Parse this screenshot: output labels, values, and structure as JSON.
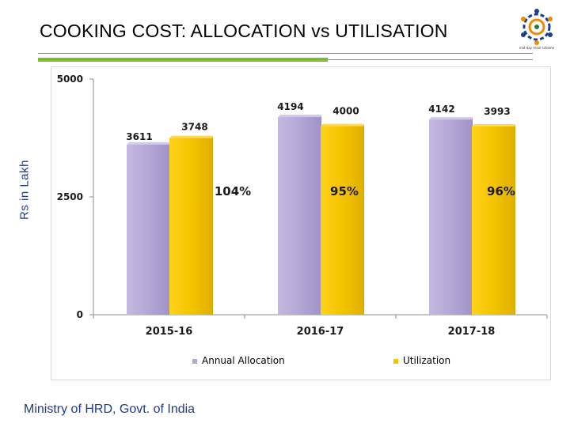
{
  "header": {
    "title": "COOKING COST: ALLOCATION vs UTILISATION"
  },
  "logo": {
    "name": "scheme-logo-icon",
    "caption": "mid day meal scheme"
  },
  "footer": {
    "text": "Ministry of HRD, Govt. of India"
  },
  "colors": {
    "allocation": "#b4a7d6",
    "utilization": "#f5c400",
    "title_rule": "#7dbb2a",
    "accent_text": "#1f3a8a"
  },
  "chart_data": {
    "type": "bar",
    "title": "COOKING COST: ALLOCATION vs UTILISATION",
    "xlabel": "",
    "ylabel": "Rs in Lakh",
    "ylim": [
      0,
      5000
    ],
    "yticks": [
      "0",
      "2500",
      "5000"
    ],
    "yticks_values": [
      0,
      2500,
      5000
    ],
    "categories": [
      "2015-16",
      "2016-17",
      "2017-18"
    ],
    "series": [
      {
        "name": "Annual Allocation",
        "values": [
          3611,
          4194,
          4142
        ],
        "labels": [
          "3611",
          "4194",
          "4142"
        ]
      },
      {
        "name": "Utilization",
        "values": [
          3748,
          4000,
          3993
        ],
        "labels": [
          "3748",
          "4000",
          "3993"
        ]
      }
    ],
    "annotations": [
      "104%",
      "95%",
      "96%"
    ],
    "legend": "bottom"
  }
}
